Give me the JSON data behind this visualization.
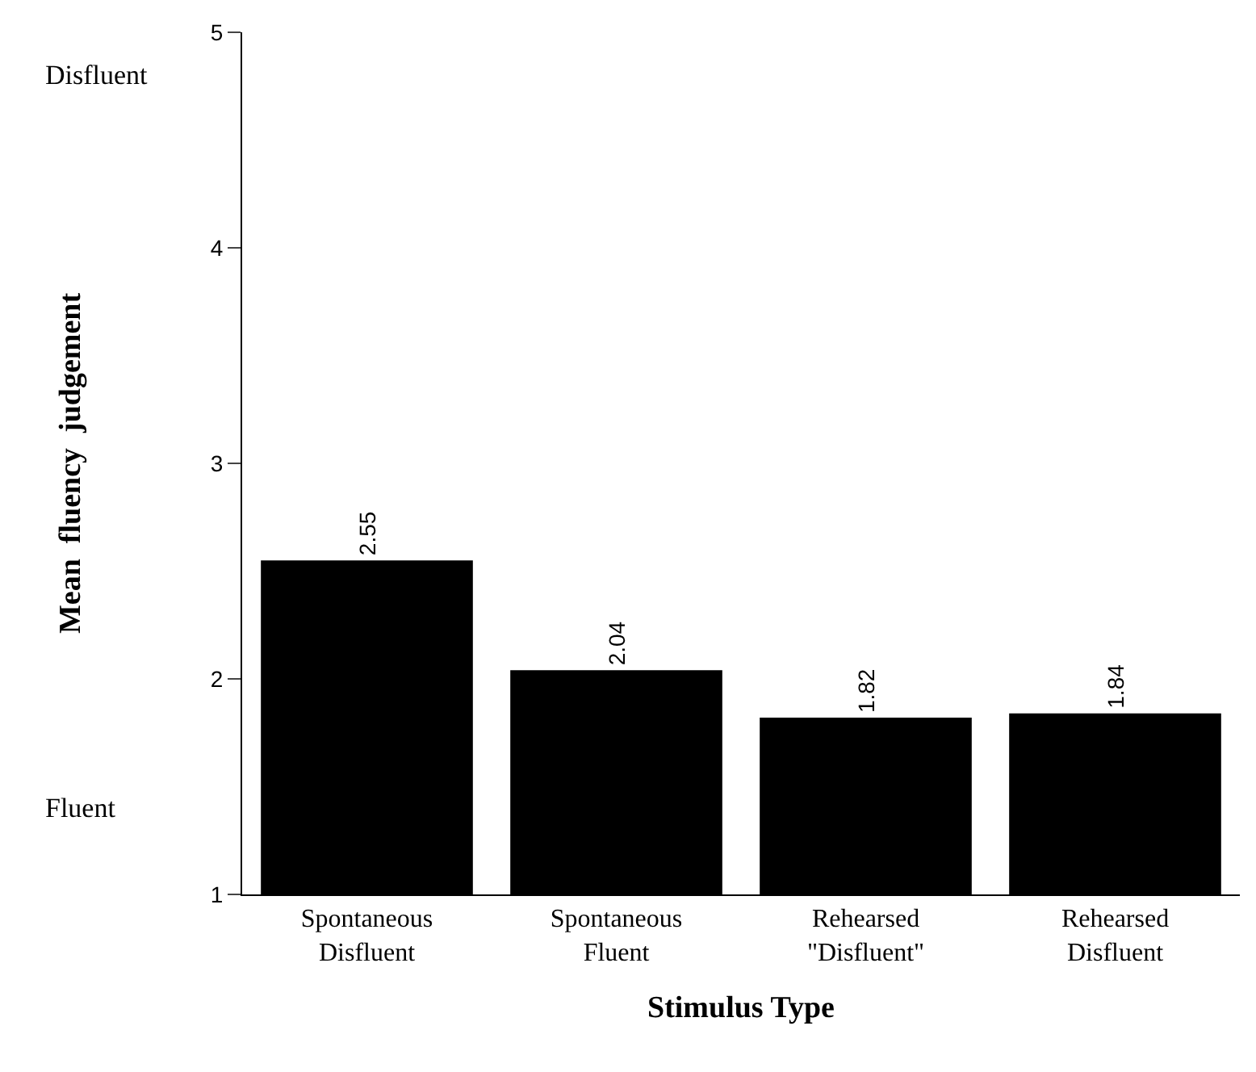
{
  "chart_data": {
    "type": "bar",
    "xlabel": "Stimulus Type",
    "ylabel": "Mean  fluency  judgement",
    "categories": [
      "Spontaneous\nDisfluent",
      "Spontaneous\nFluent",
      "Rehearsed\n\"Disfluent\"",
      "Rehearsed\nDisfluent"
    ],
    "values": [
      2.55,
      2.04,
      1.82,
      1.84
    ],
    "color": "#000000",
    "data_labels": true,
    "ylim": [
      1,
      5
    ],
    "yticks": [
      1,
      2,
      3,
      4,
      5
    ],
    "annotations": [
      "Disfluent",
      "Fluent"
    ]
  }
}
